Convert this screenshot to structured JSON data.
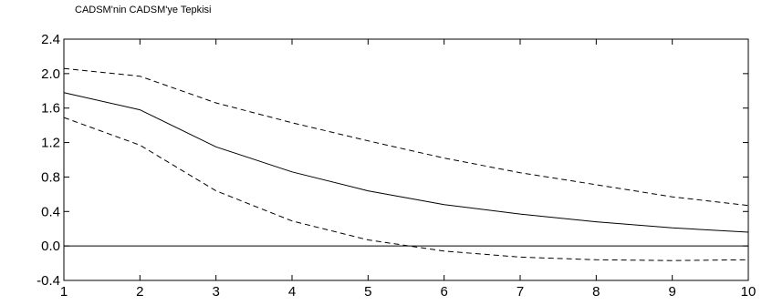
{
  "chart_data": {
    "type": "line",
    "title": "CADSM'nin CADSM'ye Tepkisi",
    "xlabel": "",
    "ylabel": "",
    "x": [
      1,
      2,
      3,
      4,
      5,
      6,
      7,
      8,
      9,
      10
    ],
    "xlim": [
      1,
      10
    ],
    "ylim": [
      -0.4,
      2.4
    ],
    "yticks": [
      "2.4",
      "2.0",
      "1.6",
      "1.2",
      "0.8",
      "0.4",
      "0.0",
      "-0.4"
    ],
    "xticks": [
      "1",
      "2",
      "3",
      "4",
      "5",
      "6",
      "7",
      "8",
      "9",
      "10"
    ],
    "grid": false,
    "zero_line": true,
    "series": [
      {
        "style": "solid",
        "values": [
          1.78,
          1.58,
          1.15,
          0.86,
          0.64,
          0.48,
          0.37,
          0.28,
          0.21,
          0.16
        ]
      },
      {
        "style": "dashed",
        "values": [
          2.06,
          1.97,
          1.66,
          1.43,
          1.22,
          1.02,
          0.85,
          0.71,
          0.57,
          0.47
        ]
      },
      {
        "style": "dashed",
        "values": [
          1.49,
          1.17,
          0.64,
          0.29,
          0.07,
          -0.06,
          -0.13,
          -0.16,
          -0.17,
          -0.16
        ]
      }
    ]
  }
}
